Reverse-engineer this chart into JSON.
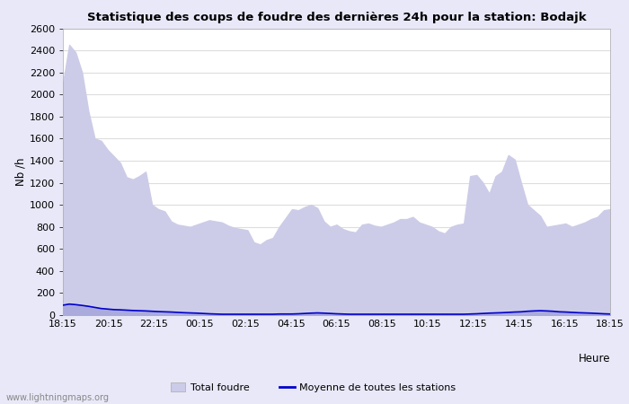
{
  "title": "Statistique des coups de foudre des dernières 24h pour la station: Bodajk",
  "ylabel": "Nb /h",
  "xlabel": "Heure",
  "ylim": [
    0,
    2600
  ],
  "yticks": [
    0,
    200,
    400,
    600,
    800,
    1000,
    1200,
    1400,
    1600,
    1800,
    2000,
    2200,
    2400,
    2600
  ],
  "xtick_labels": [
    "18:15",
    "20:15",
    "22:15",
    "00:15",
    "02:15",
    "04:15",
    "06:15",
    "08:15",
    "10:15",
    "12:15",
    "14:15",
    "16:15",
    "18:15"
  ],
  "color_total": "#cccce8",
  "color_bodajk": "#aaaadd",
  "color_moyenne": "#0000cc",
  "background_color": "#ffffff",
  "grid_color": "#dddddd",
  "outer_bg": "#e8e8f8",
  "watermark": "www.lightningmaps.org",
  "legend_total": "Total foudre",
  "legend_moyenne": "Moyenne de toutes les stations",
  "total_foudre": [
    2100,
    2450,
    2380,
    2200,
    1850,
    1600,
    1580,
    1500,
    1440,
    1380,
    1250,
    1230,
    1260,
    1300,
    1000,
    960,
    940,
    850,
    820,
    810,
    800,
    820,
    840,
    860,
    850,
    840,
    810,
    790,
    780,
    770,
    660,
    640,
    680,
    700,
    800,
    880,
    960,
    950,
    980,
    1000,
    970,
    850,
    800,
    820,
    780,
    760,
    750,
    820,
    830,
    810,
    800,
    820,
    840,
    870,
    870,
    890,
    840,
    820,
    800,
    760,
    740,
    800,
    820,
    830,
    1260,
    1270,
    1200,
    1100,
    1260,
    1300,
    1450,
    1410,
    1200,
    1000,
    950,
    900,
    800,
    810,
    820,
    830,
    800,
    820,
    840,
    870,
    890,
    950,
    960
  ],
  "moyenne_foudre": [
    90,
    100,
    95,
    88,
    80,
    70,
    60,
    55,
    50,
    48,
    45,
    42,
    40,
    38,
    35,
    32,
    30,
    28,
    25,
    22,
    20,
    18,
    15,
    12,
    10,
    8,
    8,
    8,
    8,
    8,
    8,
    8,
    8,
    8,
    10,
    10,
    10,
    12,
    15,
    18,
    20,
    18,
    15,
    12,
    10,
    8,
    8,
    8,
    8,
    8,
    8,
    8,
    8,
    8,
    8,
    8,
    8,
    8,
    8,
    8,
    8,
    8,
    8,
    8,
    10,
    12,
    15,
    18,
    20,
    22,
    25,
    28,
    30,
    35,
    38,
    40,
    38,
    35,
    30,
    28,
    25,
    22,
    20,
    18,
    15,
    12,
    10
  ]
}
